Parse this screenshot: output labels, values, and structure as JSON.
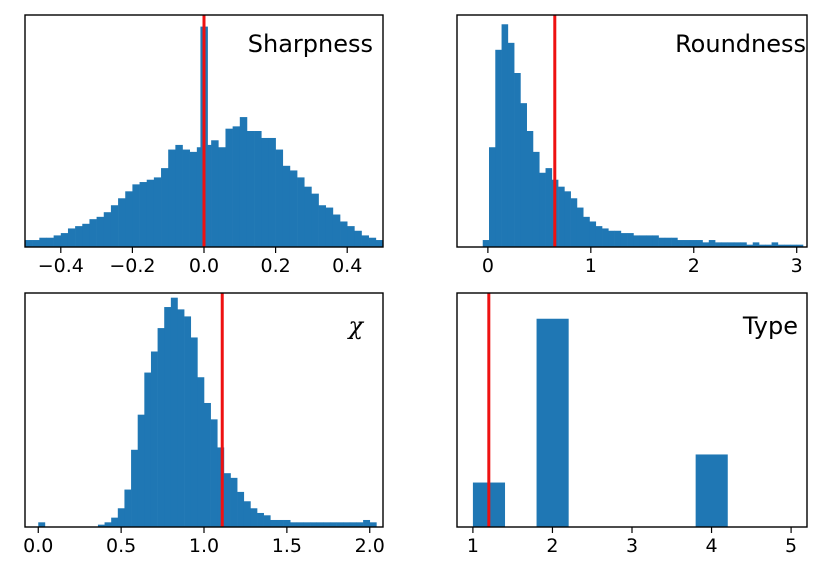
{
  "colors": {
    "bar": "#1f77b4",
    "marker": "#ee1111",
    "axis": "#000000"
  },
  "chart_data": [
    {
      "type": "bar",
      "title": "Sharpness",
      "xlim": [
        -0.5,
        0.5
      ],
      "ylim": [
        0,
        1
      ],
      "xticks": [
        {
          "value": -0.4,
          "label": "−0.4"
        },
        {
          "value": -0.2,
          "label": "−0.2"
        },
        {
          "value": 0.0,
          "label": "0.0"
        },
        {
          "value": 0.2,
          "label": "0.2"
        },
        {
          "value": 0.4,
          "label": "0.4"
        }
      ],
      "y_axis_labels": false,
      "bin_start": -0.5,
      "bin_width": 0.02,
      "values": [
        0.03,
        0.03,
        0.04,
        0.04,
        0.05,
        0.06,
        0.08,
        0.09,
        0.1,
        0.12,
        0.13,
        0.15,
        0.18,
        0.21,
        0.24,
        0.27,
        0.28,
        0.29,
        0.3,
        0.34,
        0.42,
        0.44,
        0.42,
        0.41,
        0.43,
        0.44,
        0.46,
        0.43,
        0.51,
        0.52,
        0.56,
        0.5,
        0.5,
        0.47,
        0.47,
        0.42,
        0.35,
        0.33,
        0.3,
        0.26,
        0.23,
        0.18,
        0.17,
        0.14,
        0.11,
        0.09,
        0.07,
        0.05,
        0.04,
        0.03
      ],
      "spike": {
        "x": -0.01,
        "width": 0.02,
        "value": 0.95
      },
      "marker_x": 0.0
    },
    {
      "type": "bar",
      "title": "Roundness",
      "xlim": [
        -0.3,
        3.1
      ],
      "ylim": [
        0,
        1
      ],
      "xticks": [
        {
          "value": 0,
          "label": "0"
        },
        {
          "value": 1,
          "label": "1"
        },
        {
          "value": 2,
          "label": "2"
        },
        {
          "value": 3,
          "label": "3"
        }
      ],
      "y_axis_labels": false,
      "bin_start": -0.05,
      "bin_width": 0.061,
      "values": [
        0.03,
        0.43,
        0.85,
        0.96,
        0.88,
        0.75,
        0.62,
        0.5,
        0.41,
        0.32,
        0.34,
        0.29,
        0.26,
        0.24,
        0.21,
        0.17,
        0.13,
        0.11,
        0.09,
        0.08,
        0.07,
        0.07,
        0.06,
        0.06,
        0.05,
        0.05,
        0.05,
        0.05,
        0.04,
        0.04,
        0.04,
        0.03,
        0.03,
        0.03,
        0.03,
        0.02,
        0.03,
        0.02,
        0.02,
        0.02,
        0.02,
        0.02,
        0.01,
        0.02,
        0.01,
        0.01,
        0.02,
        0.01,
        0.01,
        0.01,
        0.01
      ],
      "marker_x": 0.65
    },
    {
      "type": "bar",
      "title": "χ",
      "title_italic": true,
      "xlim": [
        -0.08,
        2.08
      ],
      "ylim": [
        0,
        1
      ],
      "xticks": [
        {
          "value": 0.0,
          "label": "0.0"
        },
        {
          "value": 0.5,
          "label": "0.5"
        },
        {
          "value": 1.0,
          "label": "1.0"
        },
        {
          "value": 1.5,
          "label": "1.5"
        },
        {
          "value": 2.0,
          "label": "2.0"
        }
      ],
      "y_axis_labels": false,
      "bin_start": 0.0,
      "bin_width": 0.04,
      "values": [
        0.02,
        0.0,
        0.0,
        0.0,
        0.0,
        0.0,
        0.0,
        0.0,
        0.0,
        0.01,
        0.02,
        0.04,
        0.08,
        0.16,
        0.33,
        0.48,
        0.66,
        0.75,
        0.85,
        0.94,
        0.98,
        0.93,
        0.9,
        0.81,
        0.64,
        0.53,
        0.46,
        0.34,
        0.23,
        0.21,
        0.15,
        0.11,
        0.08,
        0.06,
        0.05,
        0.03,
        0.03,
        0.03,
        0.02,
        0.02,
        0.02,
        0.02,
        0.02,
        0.02,
        0.02,
        0.02,
        0.02,
        0.02,
        0.02,
        0.03,
        0.02
      ],
      "marker_x": 1.11
    },
    {
      "type": "bar",
      "title": "Type",
      "xlim": [
        0.8,
        5.2
      ],
      "ylim": [
        0,
        1
      ],
      "xticks": [
        {
          "value": 1,
          "label": "1"
        },
        {
          "value": 2,
          "label": "2"
        },
        {
          "value": 3,
          "label": "3"
        },
        {
          "value": 4,
          "label": "4"
        },
        {
          "value": 5,
          "label": "5"
        }
      ],
      "y_axis_labels": false,
      "bin_start": 1.0,
      "bin_width": 0.4,
      "values": [
        0.19,
        0.0,
        0.89,
        0.0,
        0.0,
        0.0,
        0.0,
        0.31,
        0.0,
        0.0
      ],
      "marker_x": 1.2
    }
  ]
}
